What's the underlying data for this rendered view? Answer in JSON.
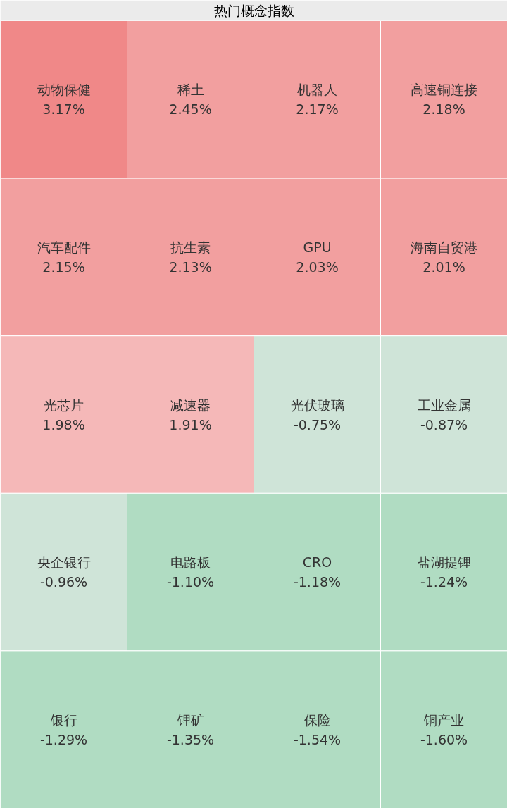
{
  "chart_data": {
    "type": "other",
    "title": "热门概念指数",
    "categories": [
      "动物保健",
      "稀土",
      "机器人",
      "高速铜连接",
      "汽车配件",
      "抗生素",
      "GPU",
      "海南自贸港",
      "光芯片",
      "减速器",
      "光伏玻璃",
      "工业金属",
      "央企银行",
      "电路板",
      "CRO",
      "盐湖提锂",
      "银行",
      "锂矿",
      "保险",
      "铜产业"
    ],
    "values": [
      3.17,
      2.45,
      2.17,
      2.18,
      2.15,
      2.13,
      2.03,
      2.01,
      1.98,
      1.91,
      -0.75,
      -0.87,
      -0.96,
      -1.1,
      -1.18,
      -1.24,
      -1.29,
      -1.35,
      -1.54,
      -1.6
    ],
    "value_labels": [
      "3.17%",
      "2.45%",
      "2.17%",
      "2.18%",
      "2.15%",
      "2.13%",
      "2.03%",
      "2.01%",
      "1.98%",
      "1.91%",
      "-0.75%",
      "-0.87%",
      "-0.96%",
      "-1.10%",
      "-1.18%",
      "-1.24%",
      "-1.29%",
      "-1.35%",
      "-1.54%",
      "-1.60%"
    ],
    "colors": [
      "#f08888",
      "#f29f9f",
      "#f29f9f",
      "#f29f9f",
      "#f29f9f",
      "#f29f9f",
      "#f29f9f",
      "#f29f9f",
      "#f5b8b8",
      "#f5b8b8",
      "#cfe4d8",
      "#cfe4d8",
      "#cfe4d8",
      "#b0dcc2",
      "#b0dcc2",
      "#b0dcc2",
      "#b0dcc2",
      "#b0dcc2",
      "#b0dcc2",
      "#b0dcc2"
    ]
  }
}
